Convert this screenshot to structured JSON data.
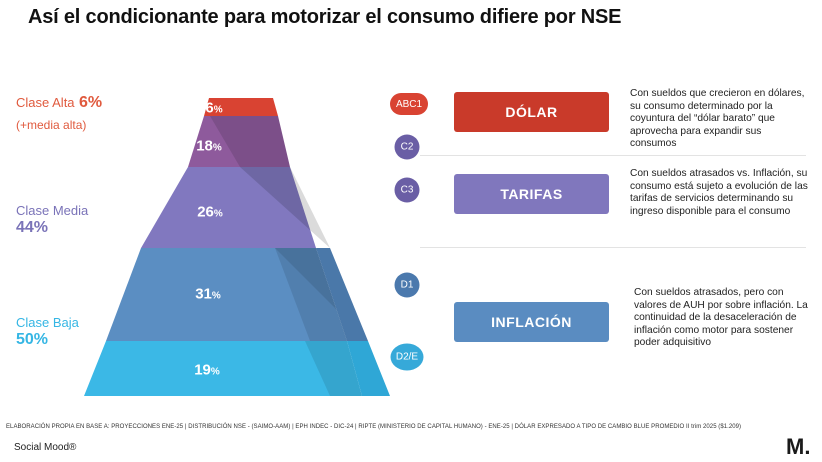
{
  "title": "Así el condicionante para motorizar el consumo difiere por NSE",
  "classes": {
    "alta": {
      "name": "Clase Alta",
      "pct": "6%",
      "sub": "(+media alta)"
    },
    "media": {
      "name": "Clase Media",
      "pct": "44%"
    },
    "baja": {
      "name": "Clase Baja",
      "pct": "50%"
    }
  },
  "segments": [
    {
      "value": "6",
      "unit": "%",
      "color": "#d94332"
    },
    {
      "value": "18",
      "unit": "%",
      "color": "#8e5a9c"
    },
    {
      "value": "26",
      "unit": "%",
      "color": "#8178bf"
    },
    {
      "value": "31",
      "unit": "%",
      "color": "#5b8ec2"
    },
    {
      "value": "19",
      "unit": "%",
      "color": "#3bb8e6"
    }
  ],
  "nse_levels": [
    {
      "label": "ABC1",
      "color": "#d94332"
    },
    {
      "label": "C2",
      "color": "#6a5ea5"
    },
    {
      "label": "C3",
      "color": "#6a5ea5"
    },
    {
      "label": "D1",
      "color": "#4b79ad"
    },
    {
      "label": "D2/E",
      "color": "#36a9d9"
    }
  ],
  "drivers": [
    {
      "label": "DÓLAR",
      "color": "#c93a2a",
      "description": "Con sueldos que crecieron en dólares, su consumo determinado por la coyuntura del “dólar barato” que aprovecha para expandir sus consumos"
    },
    {
      "label": "TARIFAS",
      "color": "#8077bd",
      "description": "Con sueldos atrasados vs. Inflación, su consumo está sujeto a evolución de las tarifas de servicios determinando su ingreso disponible para el consumo"
    },
    {
      "label": "INFLACIÓN",
      "color": "#5a8cc1",
      "description": "Con sueldos atrasados, pero con valores de AUH por sobre inflación. La continuidad de la desaceleración de inflación como motor para sostener poder adquisitivo"
    }
  ],
  "footnote": "ELABORACIÓN PROPIA EN BASE A: PROYECCIONES ENE-25  |  DISTRIBUCIÓN NSE - (SAIMO-AAM)  |  EPH INDEC - DIC-24  |  RIPTE (MINISTERIO DE CAPITAL HUMANO) - ENE-25  |  DÓLAR EXPRESADO A TIPO DE  CAMBIO BLUE PROMEDIO II trim 2025 ($1.209)",
  "brand": "Social Mood®",
  "logo": "M."
}
